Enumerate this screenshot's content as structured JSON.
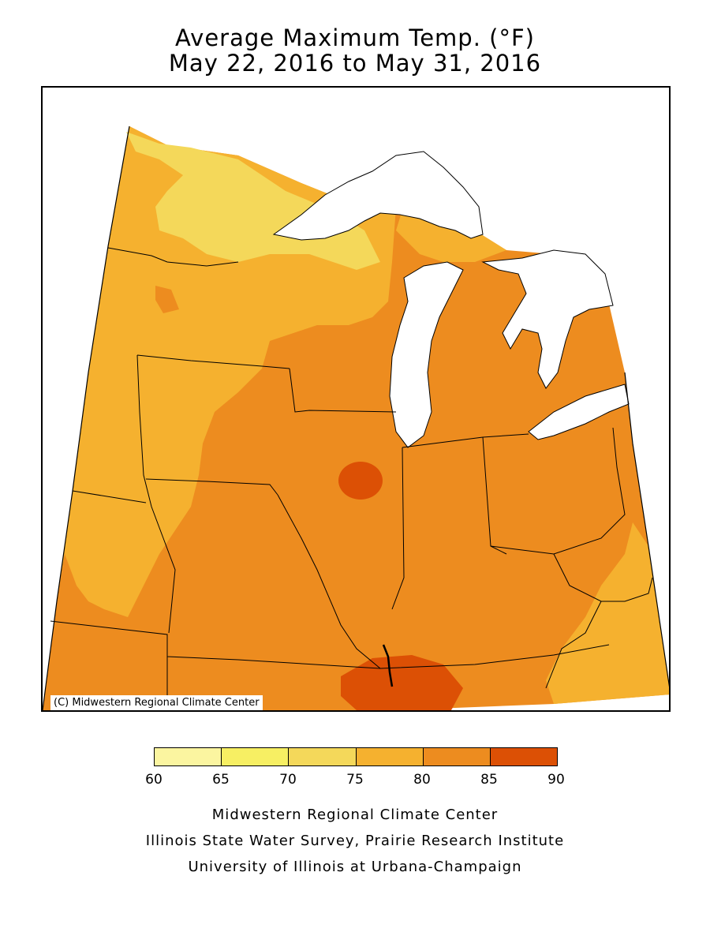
{
  "header": {
    "title": "Average Maximum Temp. (°F)",
    "subtitle": "May 22, 2016 to May 31, 2016"
  },
  "map": {
    "credit": "(C) Midwestern Regional Climate Center",
    "colors": {
      "c60_65": "#fbf5a0",
      "c65_70": "#f7ef63",
      "c70_75": "#f4d85a",
      "c75_80": "#f5b12f",
      "c80_85": "#ed8c1f",
      "c85_90": "#dc5005",
      "water": "#ffffff",
      "borders": "#000000"
    }
  },
  "legend": {
    "colors": [
      "#fbf5a0",
      "#f7ef63",
      "#f4d85a",
      "#f5b12f",
      "#ed8c1f",
      "#dc5005"
    ],
    "ticks": [
      "60",
      "65",
      "70",
      "75",
      "80",
      "85",
      "90"
    ]
  },
  "footer": {
    "line1": "Midwestern Regional Climate Center",
    "line2": "Illinois State Water Survey, Prairie Research Institute",
    "line3": "University of Illinois at Urbana-Champaign"
  }
}
